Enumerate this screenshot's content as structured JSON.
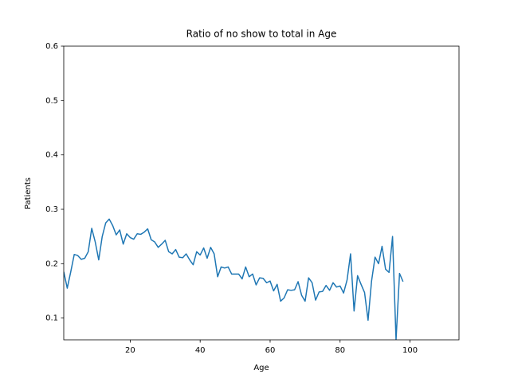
{
  "chart_data": {
    "type": "line",
    "title": "Ratio of no show to total in Age",
    "x_label": "Age",
    "y_label": "Patients",
    "x": [
      1,
      2,
      3,
      4,
      5,
      6,
      7,
      8,
      9,
      10,
      11,
      12,
      13,
      14,
      15,
      16,
      17,
      18,
      19,
      20,
      21,
      22,
      23,
      24,
      25,
      26,
      27,
      28,
      29,
      30,
      31,
      32,
      33,
      34,
      35,
      36,
      37,
      38,
      39,
      40,
      41,
      42,
      43,
      44,
      45,
      46,
      47,
      48,
      49,
      50,
      51,
      52,
      53,
      54,
      55,
      56,
      57,
      58,
      59,
      60,
      61,
      62,
      63,
      64,
      65,
      66,
      67,
      68,
      69,
      70,
      71,
      72,
      73,
      74,
      75,
      76,
      77,
      78,
      79,
      80,
      81,
      82,
      83,
      84,
      85,
      86,
      87,
      88,
      89,
      90,
      91,
      92,
      93,
      94,
      95,
      96,
      97,
      98
    ],
    "values": [
      0.185,
      0.155,
      0.185,
      0.217,
      0.215,
      0.208,
      0.21,
      0.222,
      0.265,
      0.24,
      0.207,
      0.25,
      0.275,
      0.282,
      0.27,
      0.253,
      0.262,
      0.236,
      0.255,
      0.248,
      0.245,
      0.255,
      0.254,
      0.258,
      0.264,
      0.244,
      0.24,
      0.23,
      0.236,
      0.243,
      0.222,
      0.218,
      0.226,
      0.212,
      0.211,
      0.218,
      0.207,
      0.198,
      0.222,
      0.216,
      0.229,
      0.21,
      0.23,
      0.218,
      0.176,
      0.194,
      0.192,
      0.194,
      0.181,
      0.181,
      0.181,
      0.172,
      0.194,
      0.176,
      0.181,
      0.161,
      0.174,
      0.173,
      0.165,
      0.168,
      0.15,
      0.162,
      0.131,
      0.137,
      0.152,
      0.151,
      0.152,
      0.167,
      0.142,
      0.131,
      0.174,
      0.165,
      0.133,
      0.148,
      0.149,
      0.16,
      0.151,
      0.165,
      0.157,
      0.159,
      0.146,
      0.17,
      0.218,
      0.113,
      0.178,
      0.162,
      0.147,
      0.096,
      0.168,
      0.212,
      0.2,
      0.232,
      0.19,
      0.184,
      0.25,
      0.06,
      0.182,
      0.167
    ],
    "color": "#1f77b4",
    "xlim": [
      1,
      114
    ],
    "xticks": [
      20,
      40,
      60,
      80,
      100
    ],
    "ylim": [
      0.06,
      0.6
    ],
    "yticks": [
      0.1,
      0.2,
      0.3,
      0.4,
      0.5,
      0.6
    ]
  }
}
